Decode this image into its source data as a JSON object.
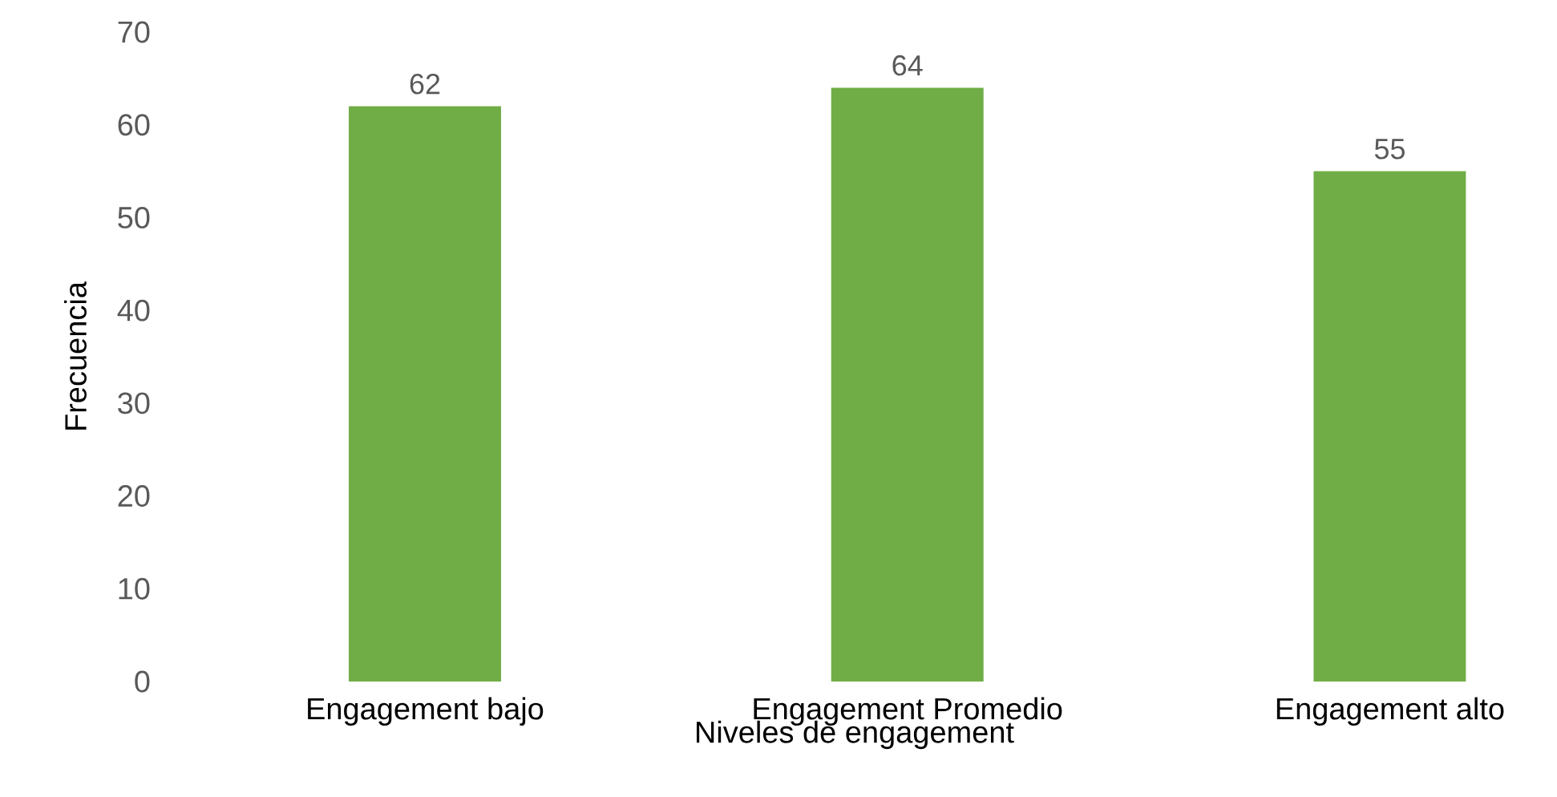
{
  "chart_data": {
    "type": "bar",
    "xlabel": "Niveles de engagement",
    "ylabel": "Frecuencia",
    "categories": [
      "Engagement bajo",
      "Engagement Promedio",
      "Engagement alto"
    ],
    "values": [
      62,
      64,
      55
    ],
    "color": "#70ad47",
    "ylim": [
      0,
      70
    ],
    "yticks": [
      0,
      10,
      20,
      30,
      40,
      50,
      60,
      70
    ],
    "data_labels": true
  }
}
